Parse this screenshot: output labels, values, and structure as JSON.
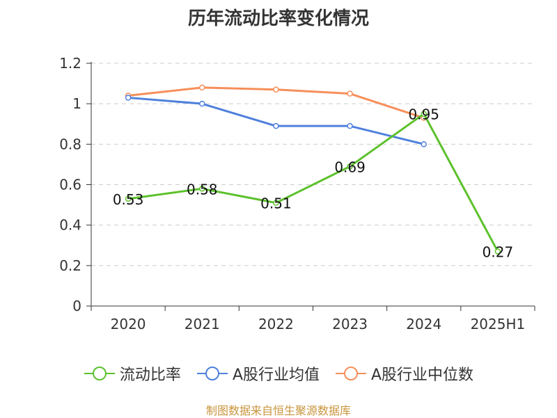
{
  "chart_data": {
    "type": "line",
    "title": "历年流动比率变化情况",
    "categories": [
      "2020",
      "2021",
      "2022",
      "2023",
      "2024",
      "2025H1"
    ],
    "ylim": [
      0,
      1.2
    ],
    "yticks": [
      "0",
      "0.2",
      "0.4",
      "0.6",
      "0.8",
      "1",
      "1.2"
    ],
    "grid": true,
    "legend_position": "bottom",
    "series": [
      {
        "name": "流动比率",
        "color": "#5cc12b",
        "values": [
          0.53,
          0.58,
          0.51,
          0.69,
          0.95,
          0.27
        ],
        "labels": [
          "0.53",
          "0.58",
          "0.51",
          "0.69",
          "0.95",
          "0.27"
        ]
      },
      {
        "name": "A股行业均值",
        "color": "#4e80dc",
        "values": [
          1.03,
          1.0,
          0.89,
          0.89,
          0.8,
          null
        ]
      },
      {
        "name": "A股行业中位数",
        "color": "#f68f5a",
        "values": [
          1.04,
          1.08,
          1.07,
          1.05,
          0.93,
          null
        ]
      }
    ]
  },
  "footer": {
    "source": "制图数据来自恒生聚源数据库"
  }
}
